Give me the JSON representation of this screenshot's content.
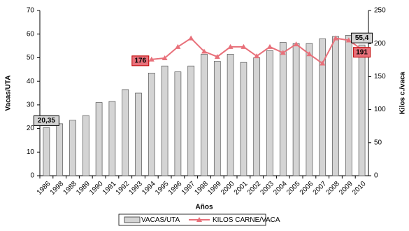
{
  "chart_data": {
    "type": "bar-line",
    "xlabel": "Años",
    "ylabel": "Vacas/UTA",
    "y2label": "Kilos c./vaca",
    "categories": [
      "1986",
      "1998",
      "1988",
      "1989",
      "1990",
      "1991",
      "1992",
      "1993",
      "1994",
      "1995",
      "1996",
      "1997",
      "1998",
      "1999",
      "2000",
      "2001",
      "2002",
      "2003",
      "2004",
      "2005",
      "2006",
      "2007",
      "2008",
      "2009",
      "2010"
    ],
    "series": [
      {
        "name": "VACAS/UTA",
        "type": "bar",
        "color": "#d4d4d4",
        "axis": "y",
        "values": [
          20.35,
          22,
          23.5,
          25.5,
          31,
          31.5,
          36.5,
          35,
          43.5,
          46.5,
          44,
          46.5,
          51.5,
          48.5,
          51.5,
          48,
          50,
          53,
          56.5,
          56,
          56,
          58,
          59,
          59.5,
          55.4
        ],
        "value_labels": [
          "20,35",
          null,
          null,
          null,
          null,
          null,
          null,
          null,
          null,
          null,
          null,
          null,
          null,
          null,
          null,
          null,
          null,
          null,
          null,
          null,
          null,
          null,
          null,
          null,
          "55,4"
        ]
      },
      {
        "name": "KILOS CARNE/VACA",
        "type": "line",
        "color": "#e8707a",
        "axis": "y2",
        "values": [
          null,
          null,
          null,
          null,
          null,
          null,
          null,
          null,
          176,
          178,
          195,
          208,
          188,
          180,
          195,
          195,
          181,
          195,
          186,
          199,
          184,
          170,
          208,
          205,
          191
        ],
        "value_labels": [
          null,
          null,
          null,
          null,
          null,
          null,
          null,
          null,
          "176",
          null,
          null,
          null,
          null,
          null,
          null,
          null,
          null,
          null,
          null,
          null,
          null,
          null,
          null,
          null,
          "191"
        ]
      }
    ],
    "ylim": [
      0,
      70
    ],
    "yticks": [
      0,
      10,
      20,
      30,
      40,
      50,
      60,
      70
    ],
    "y2lim": [
      0,
      250
    ],
    "y2ticks": [
      0,
      50,
      100,
      150,
      200,
      250
    ]
  }
}
